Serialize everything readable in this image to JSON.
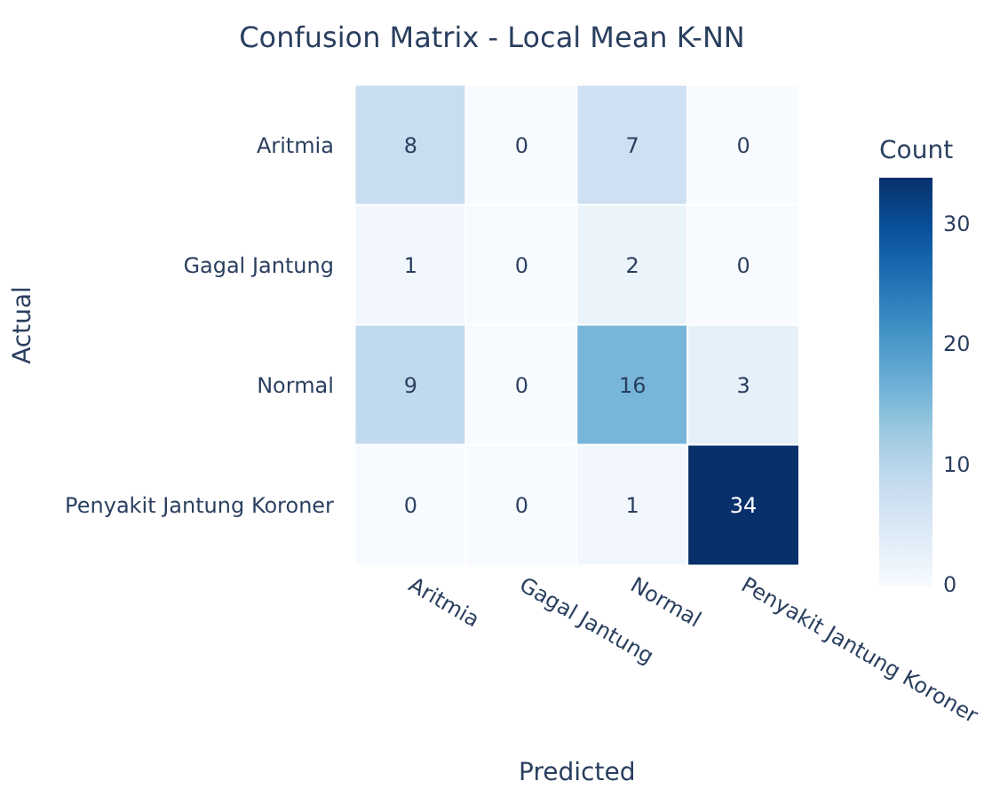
{
  "chart_data": {
    "type": "heatmap",
    "title": "Confusion Matrix - Local Mean K-NN",
    "xlabel": "Predicted",
    "ylabel": "Actual",
    "clabel": "Count",
    "categories": [
      "Aritmia",
      "Gagal Jantung",
      "Normal",
      "Penyakit Jantung Koroner"
    ],
    "y_categories": [
      "Aritmia",
      "Gagal Jantung",
      "Normal",
      "Penyakit Jantung Koroner"
    ],
    "cells": [
      [
        8,
        0,
        7,
        0
      ],
      [
        1,
        0,
        2,
        0
      ],
      [
        9,
        0,
        16,
        3
      ],
      [
        0,
        0,
        1,
        34
      ]
    ],
    "data_labels": true,
    "clim": [
      0,
      34
    ],
    "cticks": [
      0,
      10,
      20,
      30
    ],
    "grid": false
  }
}
